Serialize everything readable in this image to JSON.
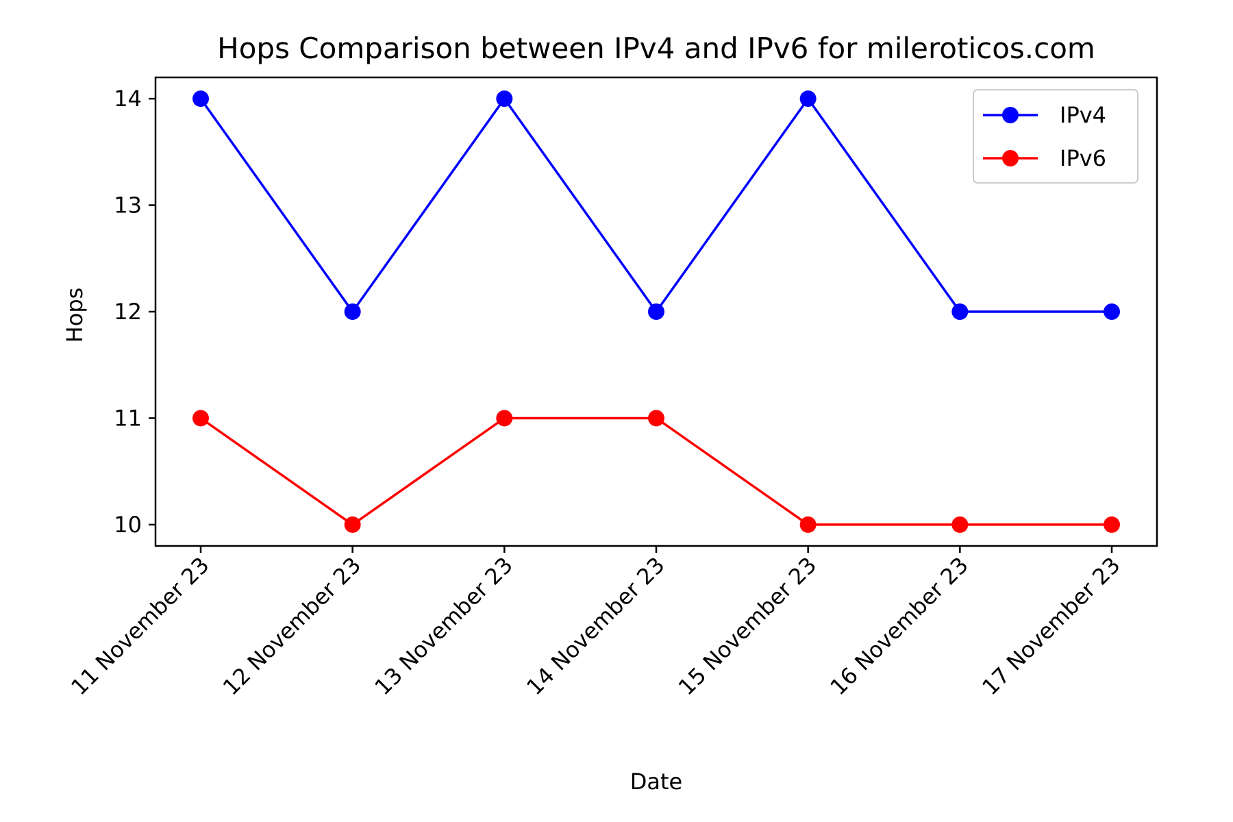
{
  "chart_data": {
    "type": "line",
    "title": "Hops Comparison between IPv4 and IPv6 for mileroticos.com",
    "xlabel": "Date",
    "ylabel": "Hops",
    "categories": [
      "11 November 23",
      "12 November 23",
      "13 November 23",
      "14 November 23",
      "15 November 23",
      "16 November 23",
      "17 November 23"
    ],
    "yticks": [
      "10",
      "11",
      "12",
      "13",
      "14"
    ],
    "ylim": [
      9.8,
      14.2
    ],
    "grid": false,
    "legend_position": "top-right",
    "series": [
      {
        "name": "IPv4",
        "color": "#0000ff",
        "marker": "circle",
        "values": [
          14,
          12,
          14,
          12,
          14,
          12,
          12
        ]
      },
      {
        "name": "IPv6",
        "color": "#ff0000",
        "marker": "circle",
        "values": [
          11,
          10,
          11,
          11,
          10,
          10,
          10
        ]
      }
    ]
  }
}
